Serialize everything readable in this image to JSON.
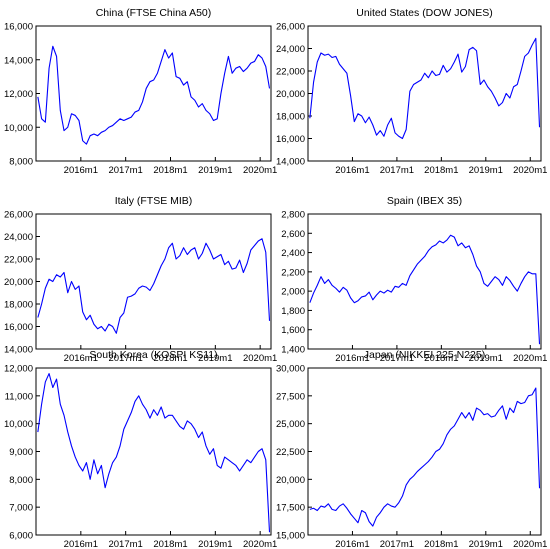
{
  "chart_data": [
    {
      "type": "line",
      "title": "China (FTSE China A50)",
      "x_start": "2015m1",
      "x_end": "2020m3",
      "xticks": [
        "2016m1",
        "2017m1",
        "2018m1",
        "2019m1",
        "2020m1"
      ],
      "yticks": [
        "8,000",
        "10,000",
        "12,000",
        "14,000",
        "16,000"
      ],
      "ylim": [
        8000,
        16000
      ],
      "color": "#0000ff",
      "series": [
        {
          "x": [
            "2015-01",
            "2015-02",
            "2015-03",
            "2015-04",
            "2015-05",
            "2015-06",
            "2015-07",
            "2015-08",
            "2015-09",
            "2015-10",
            "2015-11",
            "2015-12",
            "2016-01",
            "2016-02",
            "2016-03",
            "2016-04",
            "2016-05",
            "2016-06",
            "2016-07",
            "2016-08",
            "2016-09",
            "2016-10",
            "2016-11",
            "2016-12",
            "2017-01",
            "2017-02",
            "2017-03",
            "2017-04",
            "2017-05",
            "2017-06",
            "2017-07",
            "2017-08",
            "2017-09",
            "2017-10",
            "2017-11",
            "2017-12",
            "2018-01",
            "2018-02",
            "2018-03",
            "2018-04",
            "2018-05",
            "2018-06",
            "2018-07",
            "2018-08",
            "2018-09",
            "2018-10",
            "2018-11",
            "2018-12",
            "2019-01",
            "2019-02",
            "2019-03",
            "2019-04",
            "2019-05",
            "2019-06",
            "2019-07",
            "2019-08",
            "2019-09",
            "2019-10",
            "2019-11",
            "2019-12",
            "2020-01",
            "2020-02",
            "2020-03"
          ],
          "values": [
            11800,
            10500,
            10300,
            13500,
            14800,
            14200,
            11000,
            9800,
            10000,
            10800,
            10700,
            10400,
            9200,
            9000,
            9500,
            9600,
            9500,
            9700,
            9800,
            10000,
            10100,
            10300,
            10500,
            10400,
            10500,
            10600,
            10900,
            11000,
            11500,
            12300,
            12700,
            12800,
            13200,
            13900,
            14600,
            14100,
            14400,
            13000,
            12900,
            12500,
            12700,
            11800,
            11600,
            11200,
            11400,
            11000,
            10800,
            10400,
            10500,
            12000,
            13200,
            14200,
            13200,
            13500,
            13600,
            13300,
            13500,
            13800,
            13900,
            14300,
            14100,
            13600,
            12300
          ]
        }
      ]
    },
    {
      "type": "line",
      "title": "United States (DOW JONES)",
      "x_start": "2015m1",
      "x_end": "2020m3",
      "xticks": [
        "2016m1",
        "2017m1",
        "2018m1",
        "2019m1",
        "2020m1"
      ],
      "yticks": [
        "14,000",
        "16,000",
        "18,000",
        "20,000",
        "22,000",
        "24,000",
        "26,000"
      ],
      "ylim": [
        14000,
        26000
      ],
      "color": "#0000ff",
      "series": [
        {
          "x": [
            "2015-01",
            "2015-02",
            "2015-03",
            "2015-04",
            "2015-05",
            "2015-06",
            "2015-07",
            "2015-08",
            "2015-09",
            "2015-10",
            "2015-11",
            "2015-12",
            "2016-01",
            "2016-02",
            "2016-03",
            "2016-04",
            "2016-05",
            "2016-06",
            "2016-07",
            "2016-08",
            "2016-09",
            "2016-10",
            "2016-11",
            "2016-12",
            "2017-01",
            "2017-02",
            "2017-03",
            "2017-04",
            "2017-05",
            "2017-06",
            "2017-07",
            "2017-08",
            "2017-09",
            "2017-10",
            "2017-11",
            "2017-12",
            "2018-01",
            "2018-02",
            "2018-03",
            "2018-04",
            "2018-05",
            "2018-06",
            "2018-07",
            "2018-08",
            "2018-09",
            "2018-10",
            "2018-11",
            "2018-12",
            "2019-01",
            "2019-02",
            "2019-03",
            "2019-04",
            "2019-05",
            "2019-06",
            "2019-07",
            "2019-08",
            "2019-09",
            "2019-10",
            "2019-11",
            "2019-12",
            "2020-01",
            "2020-02",
            "2020-03"
          ],
          "values": [
            17800,
            21000,
            22800,
            23600,
            23400,
            23500,
            23200,
            23300,
            22600,
            22200,
            21800,
            19800,
            17500,
            18200,
            18000,
            17400,
            17900,
            17200,
            16300,
            16700,
            16200,
            17200,
            17800,
            16500,
            16200,
            16000,
            16800,
            20200,
            20800,
            21000,
            21200,
            21800,
            21400,
            22000,
            21600,
            21700,
            22500,
            21900,
            22200,
            22800,
            23500,
            21900,
            22400,
            23900,
            24100,
            23800,
            20800,
            21200,
            20600,
            20200,
            19600,
            18900,
            19200,
            20000,
            19600,
            20600,
            20800,
            22000,
            23300,
            23600,
            24300,
            24900,
            17000
          ]
        }
      ]
    },
    {
      "type": "line",
      "title": "Italy (FTSE MIB)",
      "x_start": "2015m1",
      "x_end": "2020m3",
      "xticks": [
        "2016m1",
        "2017m1",
        "2018m1",
        "2019m1",
        "2020m1"
      ],
      "yticks": [
        "14,000",
        "16,000",
        "18,000",
        "20,000",
        "22,000",
        "24,000",
        "26,000"
      ],
      "ylim": [
        14000,
        26000
      ],
      "color": "#0000ff",
      "series": [
        {
          "x": [
            "2015-01",
            "2015-02",
            "2015-03",
            "2015-04",
            "2015-05",
            "2015-06",
            "2015-07",
            "2015-08",
            "2015-09",
            "2015-10",
            "2015-11",
            "2015-12",
            "2016-01",
            "2016-02",
            "2016-03",
            "2016-04",
            "2016-05",
            "2016-06",
            "2016-07",
            "2016-08",
            "2016-09",
            "2016-10",
            "2016-11",
            "2016-12",
            "2017-01",
            "2017-02",
            "2017-03",
            "2017-04",
            "2017-05",
            "2017-06",
            "2017-07",
            "2017-08",
            "2017-09",
            "2017-10",
            "2017-11",
            "2017-12",
            "2018-01",
            "2018-02",
            "2018-03",
            "2018-04",
            "2018-05",
            "2018-06",
            "2018-07",
            "2018-08",
            "2018-09",
            "2018-10",
            "2018-11",
            "2018-12",
            "2019-01",
            "2019-02",
            "2019-03",
            "2019-04",
            "2019-05",
            "2019-06",
            "2019-07",
            "2019-08",
            "2019-09",
            "2019-10",
            "2019-11",
            "2019-12",
            "2020-01",
            "2020-02",
            "2020-03"
          ],
          "values": [
            16800,
            18000,
            19400,
            20200,
            20000,
            20600,
            20400,
            20800,
            19000,
            20000,
            19300,
            19600,
            17300,
            16600,
            17000,
            16200,
            15800,
            16000,
            15600,
            16200,
            16000,
            15400,
            16800,
            17200,
            18600,
            18700,
            18900,
            19400,
            19600,
            19500,
            19200,
            19800,
            20600,
            21400,
            22000,
            23000,
            23400,
            22000,
            22300,
            23000,
            22400,
            22800,
            23000,
            22000,
            22500,
            23400,
            22800,
            22000,
            22200,
            22400,
            21500,
            21800,
            21100,
            21200,
            21900,
            20800,
            21600,
            22800,
            23200,
            23600,
            23800,
            22600,
            16500
          ]
        }
      ]
    },
    {
      "type": "line",
      "title": "Spain (IBEX 35)",
      "x_start": "2015m1",
      "x_end": "2020m3",
      "xticks": [
        "2016m1",
        "2017m1",
        "2018m1",
        "2019m1",
        "2020m1"
      ],
      "yticks": [
        "1,400",
        "1,600",
        "1,800",
        "2,000",
        "2,200",
        "2,400",
        "2,600",
        "2,800"
      ],
      "ylim": [
        1400,
        2800
      ],
      "color": "#0000ff",
      "series": [
        {
          "x": [
            "2015-01",
            "2015-02",
            "2015-03",
            "2015-04",
            "2015-05",
            "2015-06",
            "2015-07",
            "2015-08",
            "2015-09",
            "2015-10",
            "2015-11",
            "2015-12",
            "2016-01",
            "2016-02",
            "2016-03",
            "2016-04",
            "2016-05",
            "2016-06",
            "2016-07",
            "2016-08",
            "2016-09",
            "2016-10",
            "2016-11",
            "2016-12",
            "2017-01",
            "2017-02",
            "2017-03",
            "2017-04",
            "2017-05",
            "2017-06",
            "2017-07",
            "2017-08",
            "2017-09",
            "2017-10",
            "2017-11",
            "2017-12",
            "2018-01",
            "2018-02",
            "2018-03",
            "2018-04",
            "2018-05",
            "2018-06",
            "2018-07",
            "2018-08",
            "2018-09",
            "2018-10",
            "2018-11",
            "2018-12",
            "2019-01",
            "2019-02",
            "2019-03",
            "2019-04",
            "2019-05",
            "2019-06",
            "2019-07",
            "2019-08",
            "2019-09",
            "2019-10",
            "2019-11",
            "2019-12",
            "2020-01",
            "2020-02",
            "2020-03"
          ],
          "values": [
            1880,
            1980,
            2060,
            2150,
            2080,
            2120,
            2060,
            2030,
            1990,
            2040,
            2010,
            1930,
            1880,
            1900,
            1940,
            1950,
            1990,
            1910,
            1960,
            2000,
            1980,
            2010,
            1990,
            2050,
            2040,
            2080,
            2060,
            2160,
            2220,
            2280,
            2320,
            2360,
            2420,
            2460,
            2480,
            2520,
            2500,
            2530,
            2580,
            2560,
            2470,
            2500,
            2450,
            2470,
            2380,
            2260,
            2200,
            2080,
            2050,
            2100,
            2150,
            2120,
            2060,
            2150,
            2110,
            2050,
            2000,
            2080,
            2150,
            2200,
            2180,
            2180,
            1450
          ]
        }
      ]
    },
    {
      "type": "line",
      "title": "South Korea (KOSPI KS11)",
      "x_start": "2015m1",
      "x_end": "2020m3",
      "xticks": [
        "2016m1",
        "2017m1",
        "2018m1",
        "2019m1",
        "2020m1"
      ],
      "yticks": [
        "6,000",
        "7,000",
        "8,000",
        "9,000",
        "10,000",
        "11,000",
        "12,000"
      ],
      "ylim": [
        6000,
        12000
      ],
      "color": "#0000ff",
      "series": [
        {
          "x": [
            "2015-01",
            "2015-02",
            "2015-03",
            "2015-04",
            "2015-05",
            "2015-06",
            "2015-07",
            "2015-08",
            "2015-09",
            "2015-10",
            "2015-11",
            "2015-12",
            "2016-01",
            "2016-02",
            "2016-03",
            "2016-04",
            "2016-05",
            "2016-06",
            "2016-07",
            "2016-08",
            "2016-09",
            "2016-10",
            "2016-11",
            "2016-12",
            "2017-01",
            "2017-02",
            "2017-03",
            "2017-04",
            "2017-05",
            "2017-06",
            "2017-07",
            "2017-08",
            "2017-09",
            "2017-10",
            "2017-11",
            "2017-12",
            "2018-01",
            "2018-02",
            "2018-03",
            "2018-04",
            "2018-05",
            "2018-06",
            "2018-07",
            "2018-08",
            "2018-09",
            "2018-10",
            "2018-11",
            "2018-12",
            "2019-01",
            "2019-02",
            "2019-03",
            "2019-04",
            "2019-05",
            "2019-06",
            "2019-07",
            "2019-08",
            "2019-09",
            "2019-10",
            "2019-11",
            "2019-12",
            "2020-01",
            "2020-02",
            "2020-03"
          ],
          "values": [
            9700,
            10700,
            11500,
            11800,
            11300,
            11600,
            10700,
            10300,
            9700,
            9200,
            8800,
            8500,
            8300,
            8600,
            8000,
            8700,
            8200,
            8500,
            7700,
            8200,
            8600,
            8800,
            9200,
            9800,
            10100,
            10400,
            10800,
            11000,
            10700,
            10500,
            10200,
            10500,
            10300,
            10600,
            10200,
            10300,
            10300,
            10100,
            9900,
            9800,
            10100,
            10000,
            9800,
            9500,
            9700,
            9200,
            8900,
            9100,
            8500,
            8400,
            8800,
            8700,
            8600,
            8500,
            8300,
            8500,
            8700,
            8600,
            8800,
            9000,
            9100,
            8700,
            6100
          ]
        }
      ]
    },
    {
      "type": "line",
      "title": "Japan (NIKKEI 225 N225)",
      "x_start": "2015m1",
      "x_end": "2020m3",
      "xticks": [
        "2016m1",
        "2017m1",
        "2018m1",
        "2019m1",
        "2020m1"
      ],
      "yticks": [
        "15,000",
        "17,500",
        "20,000",
        "22,500",
        "25,000",
        "27,500",
        "30,000"
      ],
      "ylim": [
        15000,
        30000
      ],
      "color": "#0000ff",
      "series": [
        {
          "x": [
            "2015-01",
            "2015-02",
            "2015-03",
            "2015-04",
            "2015-05",
            "2015-06",
            "2015-07",
            "2015-08",
            "2015-09",
            "2015-10",
            "2015-11",
            "2015-12",
            "2016-01",
            "2016-02",
            "2016-03",
            "2016-04",
            "2016-05",
            "2016-06",
            "2016-07",
            "2016-08",
            "2016-09",
            "2016-10",
            "2016-11",
            "2016-12",
            "2017-01",
            "2017-02",
            "2017-03",
            "2017-04",
            "2017-05",
            "2017-06",
            "2017-07",
            "2017-08",
            "2017-09",
            "2017-10",
            "2017-11",
            "2017-12",
            "2018-01",
            "2018-02",
            "2018-03",
            "2018-04",
            "2018-05",
            "2018-06",
            "2018-07",
            "2018-08",
            "2018-09",
            "2018-10",
            "2018-11",
            "2018-12",
            "2019-01",
            "2019-02",
            "2019-03",
            "2019-04",
            "2019-05",
            "2019-06",
            "2019-07",
            "2019-08",
            "2019-09",
            "2019-10",
            "2019-11",
            "2019-12",
            "2020-01",
            "2020-02",
            "2020-03"
          ],
          "values": [
            17300,
            17400,
            17200,
            17600,
            17500,
            17800,
            17300,
            17200,
            17600,
            17800,
            17400,
            16900,
            16500,
            16100,
            17200,
            17000,
            16200,
            15800,
            16600,
            17000,
            17500,
            17800,
            17600,
            17500,
            17900,
            18500,
            19500,
            20000,
            20300,
            20700,
            21000,
            21300,
            21600,
            22000,
            22500,
            22700,
            23200,
            24000,
            24500,
            24800,
            25400,
            26000,
            25500,
            26000,
            25300,
            26400,
            26200,
            25800,
            25900,
            25600,
            25700,
            26200,
            26600,
            25400,
            26400,
            26000,
            27000,
            26800,
            26900,
            27500,
            27600,
            28200,
            19200
          ]
        }
      ]
    }
  ]
}
